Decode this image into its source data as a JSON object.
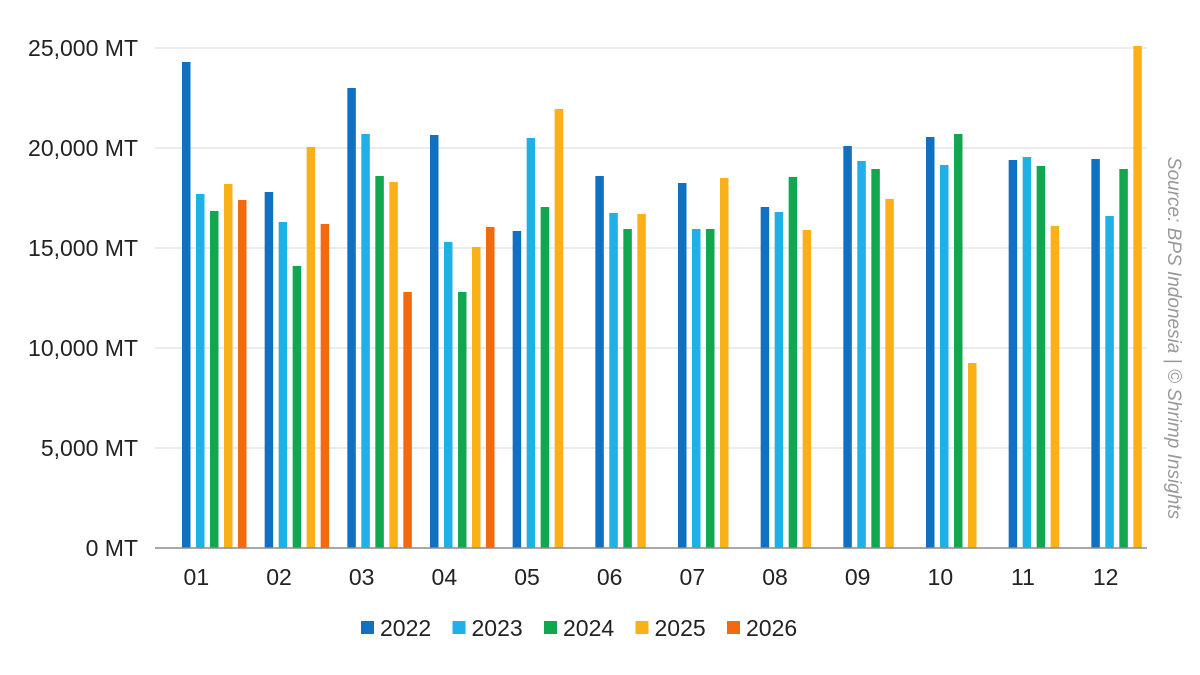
{
  "chart_data": {
    "type": "bar",
    "categories": [
      "01",
      "02",
      "03",
      "04",
      "05",
      "06",
      "07",
      "08",
      "09",
      "10",
      "11",
      "12"
    ],
    "series": [
      {
        "name": "2022",
        "color": "#1170C0",
        "values": [
          24300,
          17800,
          23000,
          20650,
          15850,
          18600,
          18250,
          17050,
          20100,
          20550,
          19400,
          19450
        ]
      },
      {
        "name": "2023",
        "color": "#1EB0E6",
        "values": [
          17700,
          16300,
          20700,
          15300,
          20500,
          16750,
          15950,
          16800,
          19350,
          19150,
          19550,
          16600
        ]
      },
      {
        "name": "2024",
        "color": "#11A650",
        "values": [
          16850,
          14100,
          18600,
          12800,
          17050,
          15950,
          15950,
          18550,
          18950,
          20700,
          19100,
          18950
        ]
      },
      {
        "name": "2025",
        "color": "#F8B218",
        "values": [
          18200,
          20050,
          18300,
          15050,
          21950,
          16700,
          18500,
          15900,
          17450,
          9250,
          16100,
          25100
        ]
      },
      {
        "name": "2026",
        "color": "#F26A10",
        "values": [
          17400,
          16200,
          12800,
          16050,
          null,
          null,
          null,
          null,
          null,
          null,
          null,
          null
        ]
      }
    ],
    "y_ticks": [
      "0 MT",
      "5,000 MT",
      "10,000 MT",
      "15,000 MT",
      "20,000 MT",
      "25,000 MT"
    ],
    "ylim": [
      0,
      25000
    ],
    "y_step": 5000,
    "grid": true,
    "legend_position": "bottom",
    "source_note": "Source: BPS Indonesia | © Shrimp Insights",
    "colors": {
      "grid": "#D9D9D9",
      "axis": "#8C8C8C",
      "text": "#222222",
      "source": "#999999"
    }
  }
}
